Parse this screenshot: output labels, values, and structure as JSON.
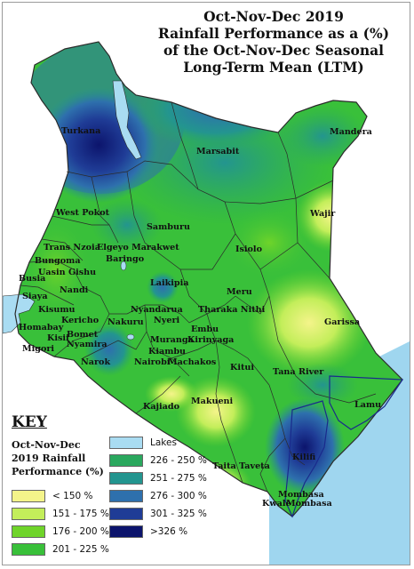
{
  "title": {
    "line1": "Oct-Nov-Dec 2019",
    "line2": "Rainfall Performance as a (%)",
    "line3": "of the Oct-Nov-Dec Seasonal",
    "line4": "Long-Term Mean (LTM)"
  },
  "labels": {
    "turkana": "Turkana",
    "marsabit": "Marsabit",
    "mandera": "Mandera",
    "wajir": "Wajir",
    "west_pokot": "West Pokot",
    "samburu": "Samburu",
    "trans_nzoia": "Trans Nzoia",
    "elgeyo_marakwet": "Elgeyo Marakwet",
    "bungoma": "Bungoma",
    "baringo": "Baringo",
    "uasin_gishu": "Uasin Gishu",
    "isiolo": "Isiolo",
    "busia": "Busia",
    "nandi": "Nandi",
    "laikipia": "Laikipia",
    "siaya": "Siaya",
    "kisumu": "Kisumu",
    "meru": "Meru",
    "kericho": "Kericho",
    "tharaka_nithi": "Tharaka Nithi",
    "nyandarua": "Nyandarua",
    "homabay": "Homabay",
    "nakuru": "Nakuru",
    "kisii": "Kisii",
    "bomet": "Bomet",
    "nyeri": "Nyeri",
    "embu": "Embu",
    "garissa": "Garissa",
    "nyamira": "Nyamira",
    "muranga": "Muranga",
    "kirinyaga": "Kirinyaga",
    "migori": "Migori",
    "kiambu": "Kiambu",
    "narok": "Narok",
    "nairobi": "Nairobi",
    "machakos": "Machakos",
    "kitui": "Kitui",
    "tana_river": "Tana River",
    "makueni": "Makueni",
    "kajiado": "Kajiado",
    "lamu": "Lamu",
    "taita_taveta": "Taita Taveta",
    "kilifi": "Kilifi",
    "mombasa": "Mombasa",
    "kwale": "Kwale",
    "mombasa2": "Mombasa"
  },
  "key": {
    "title": "KEY",
    "subtitle_line1": "Oct-Nov-Dec",
    "subtitle_line2": "2019 Rainfall",
    "subtitle_line3": "Performance (%)",
    "items": [
      {
        "label": "< 150 %",
        "color": "#f4f48a"
      },
      {
        "label": "151 - 175 %",
        "color": "#c3ee5a"
      },
      {
        "label": "176 - 200 %",
        "color": "#6fd42a"
      },
      {
        "label": "201 - 225 %",
        "color": "#39c03a"
      },
      {
        "label": "Lakes",
        "color": "#a9dcf2"
      },
      {
        "label": "226 - 250 %",
        "color": "#2aa85e"
      },
      {
        "label": "251 - 275 %",
        "color": "#23958f"
      },
      {
        "label": "276 - 300 %",
        "color": "#2e70ad"
      },
      {
        "label": "301 - 325 %",
        "color": "#1f3c96"
      },
      {
        "label": ">326 %",
        "color": "#0c146c"
      }
    ]
  },
  "colors": {
    "sea": "#9fd6ef",
    "border": "#2b2b2b",
    "box_outline": "#1a2a8c"
  }
}
